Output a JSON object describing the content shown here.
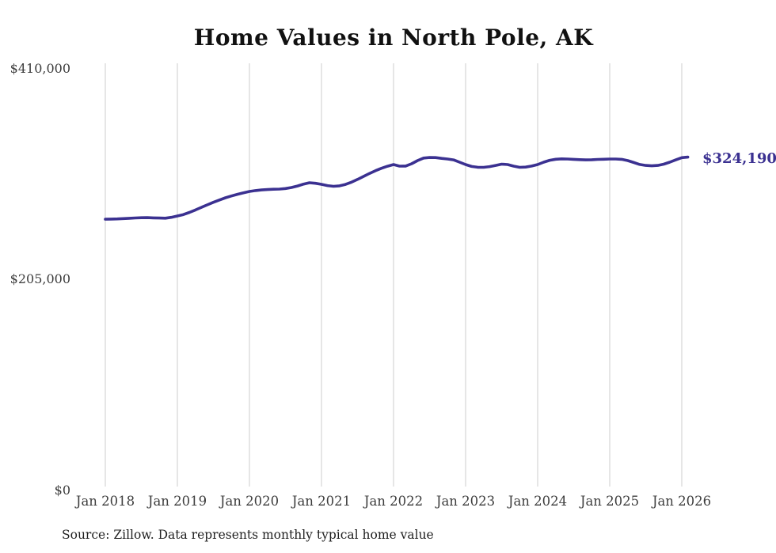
{
  "chart_data": {
    "type": "line",
    "title": "Home Values in North Pole, AK",
    "xlabel": "",
    "ylabel": "",
    "x_start": "Jan 2018",
    "x_interval": "monthly",
    "x_end": "Feb 2026",
    "x_tick_labels": [
      "Jan 2018",
      "Jan 2019",
      "Jan 2020",
      "Jan 2021",
      "Jan 2022",
      "Jan 2023",
      "Jan 2024",
      "Jan 2025",
      "Jan 2026"
    ],
    "y_tick_labels": [
      "$410,000",
      "$205,000",
      "$0"
    ],
    "y_tick_values": [
      410000,
      205000,
      0
    ],
    "ylim": [
      0,
      410000
    ],
    "grid": "vertical-only",
    "legend": "none",
    "line_color": "#3b3191",
    "gridline_color": "#cccccc",
    "end_label": "$324,190",
    "end_value": 324190,
    "source": "Source: Zillow. Data represents monthly typical home value",
    "series": [
      {
        "name": "Typical home value",
        "values": [
          263800,
          263900,
          264100,
          264400,
          264700,
          265000,
          265200,
          265300,
          265100,
          264900,
          264800,
          265600,
          266900,
          268300,
          270400,
          272800,
          275300,
          277800,
          280200,
          282500,
          284600,
          286400,
          288000,
          289500,
          290800,
          291600,
          292200,
          292600,
          292900,
          293100,
          293600,
          294600,
          296100,
          297900,
          299200,
          298700,
          297700,
          296500,
          295800,
          296200,
          297600,
          299800,
          302500,
          305400,
          308300,
          311000,
          313300,
          315300,
          316900,
          315400,
          315500,
          317700,
          320800,
          323200,
          323800,
          323700,
          322900,
          322300,
          321500,
          319200,
          316900,
          315100,
          314300,
          314200,
          314900,
          316100,
          317300,
          316900,
          315400,
          314200,
          314500,
          315500,
          316900,
          319200,
          321100,
          322100,
          322500,
          322300,
          322000,
          321700,
          321500,
          321600,
          321900,
          322100,
          322300,
          322300,
          322000,
          320800,
          318900,
          317000,
          316100,
          315700,
          316100,
          317300,
          319200,
          321500,
          323600,
          324190
        ]
      }
    ]
  }
}
